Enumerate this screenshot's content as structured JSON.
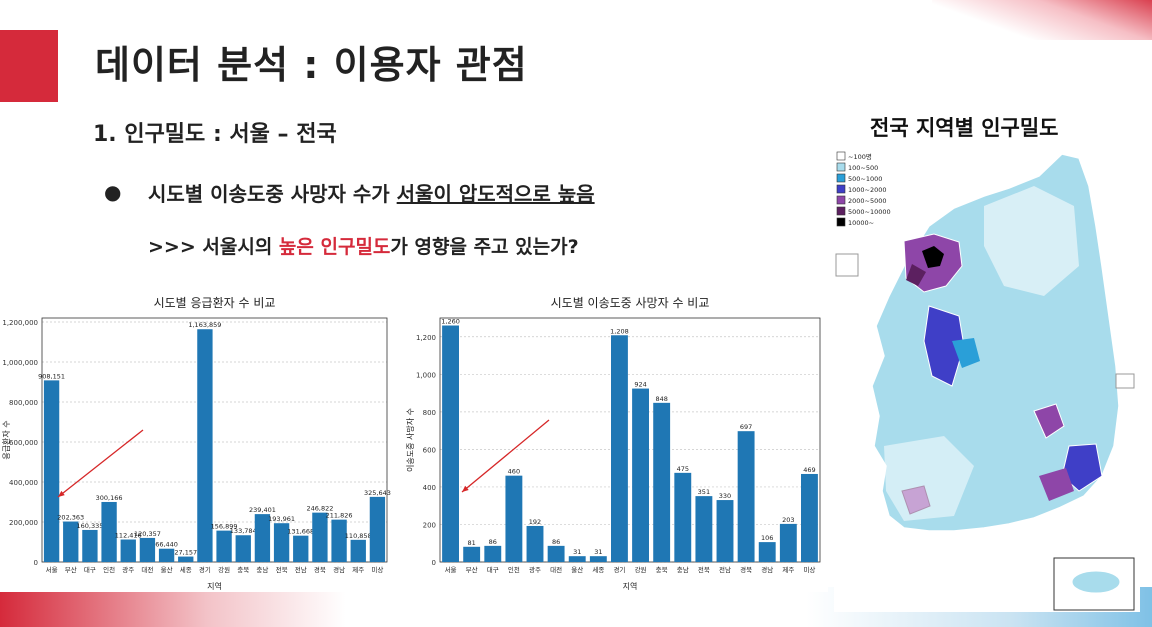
{
  "slide": {
    "title": "데이터 분석 : 이용자 관점",
    "subtitle": "1. 인구밀도 : 서울 – 전국",
    "bullet_prefix": "시도별 이송도중 사망자 수가 ",
    "bullet_underline": "서울이 압도적으로 높음",
    "question_prefix": ">>> 서울시의 ",
    "question_highlight": "높은 인구밀도",
    "question_suffix": "가 영향을 주고 있는가?",
    "map_title": "전국 지역별 인구밀도"
  },
  "colors": {
    "accent_red": "#d52a3b",
    "bar_blue": "#1f77b4",
    "arrow_red": "#d62728"
  },
  "map_legend": {
    "items": [
      {
        "label": "~100명",
        "color": "#ffffff"
      },
      {
        "label": "100~500",
        "color": "#a8dcec"
      },
      {
        "label": "500~1000",
        "color": "#2a9fd8"
      },
      {
        "label": "1000~2000",
        "color": "#3f3fc7"
      },
      {
        "label": "2000~5000",
        "color": "#8e46a8"
      },
      {
        "label": "5000~10000",
        "color": "#5c2060"
      },
      {
        "label": "10000~",
        "color": "#000000"
      }
    ]
  },
  "chart_data": [
    {
      "type": "bar",
      "title": "시도별 응급환자 수 비교",
      "xlabel": "지역",
      "ylabel": "응급환자 수",
      "categories": [
        "서울",
        "부산",
        "대구",
        "인천",
        "광주",
        "대전",
        "울산",
        "세종",
        "경기",
        "강원",
        "충북",
        "충남",
        "전북",
        "전남",
        "경북",
        "경남",
        "제주",
        "미상"
      ],
      "values": [
        908151,
        202363,
        160335,
        300166,
        112416,
        120357,
        66440,
        27157,
        1163859,
        156899,
        133784,
        239401,
        193961,
        131668,
        246822,
        211826,
        110858,
        325643
      ],
      "value_labels": [
        "908,151",
        "202,363",
        "160,335",
        "300,166",
        "112,416",
        "120,357",
        "66,440",
        "27,157",
        "1,163,859",
        "156,899",
        "133,784",
        "239,401",
        "193,961",
        "131,668",
        "246,822",
        "211,826",
        "110,858",
        "325,643"
      ],
      "ylim": [
        0,
        1220000
      ],
      "yticks": [
        0,
        200000,
        400000,
        600000,
        800000,
        1000000,
        1200000
      ],
      "ytick_labels": [
        "0",
        "200,000",
        "400,000",
        "600,000",
        "800,000",
        "1,000,000",
        "1,200,000"
      ],
      "grid": true
    },
    {
      "type": "bar",
      "title": "시도별 이송도중 사망자 수 비교",
      "xlabel": "지역",
      "ylabel": "이송도중 사망자 수",
      "categories": [
        "서울",
        "부산",
        "대구",
        "인천",
        "광주",
        "대전",
        "울산",
        "세종",
        "경기",
        "강원",
        "충북",
        "충남",
        "전북",
        "전남",
        "경북",
        "경남",
        "제주",
        "미상"
      ],
      "values": [
        1260,
        81,
        86,
        460,
        192,
        86,
        31,
        31,
        1208,
        924,
        848,
        475,
        351,
        330,
        697,
        106,
        203,
        469
      ],
      "value_labels": [
        "1,260",
        "81",
        "86",
        "460",
        "192",
        "86",
        "31",
        "31",
        "1,208",
        "924",
        "848",
        "475",
        "351",
        "330",
        "697",
        "106",
        "203",
        "469"
      ],
      "ylim": [
        0,
        1300
      ],
      "yticks": [
        0,
        200,
        400,
        600,
        800,
        1000,
        1200
      ],
      "ytick_labels": [
        "0",
        "200",
        "400",
        "600",
        "800",
        "1,000",
        "1,200"
      ],
      "grid": true
    }
  ]
}
